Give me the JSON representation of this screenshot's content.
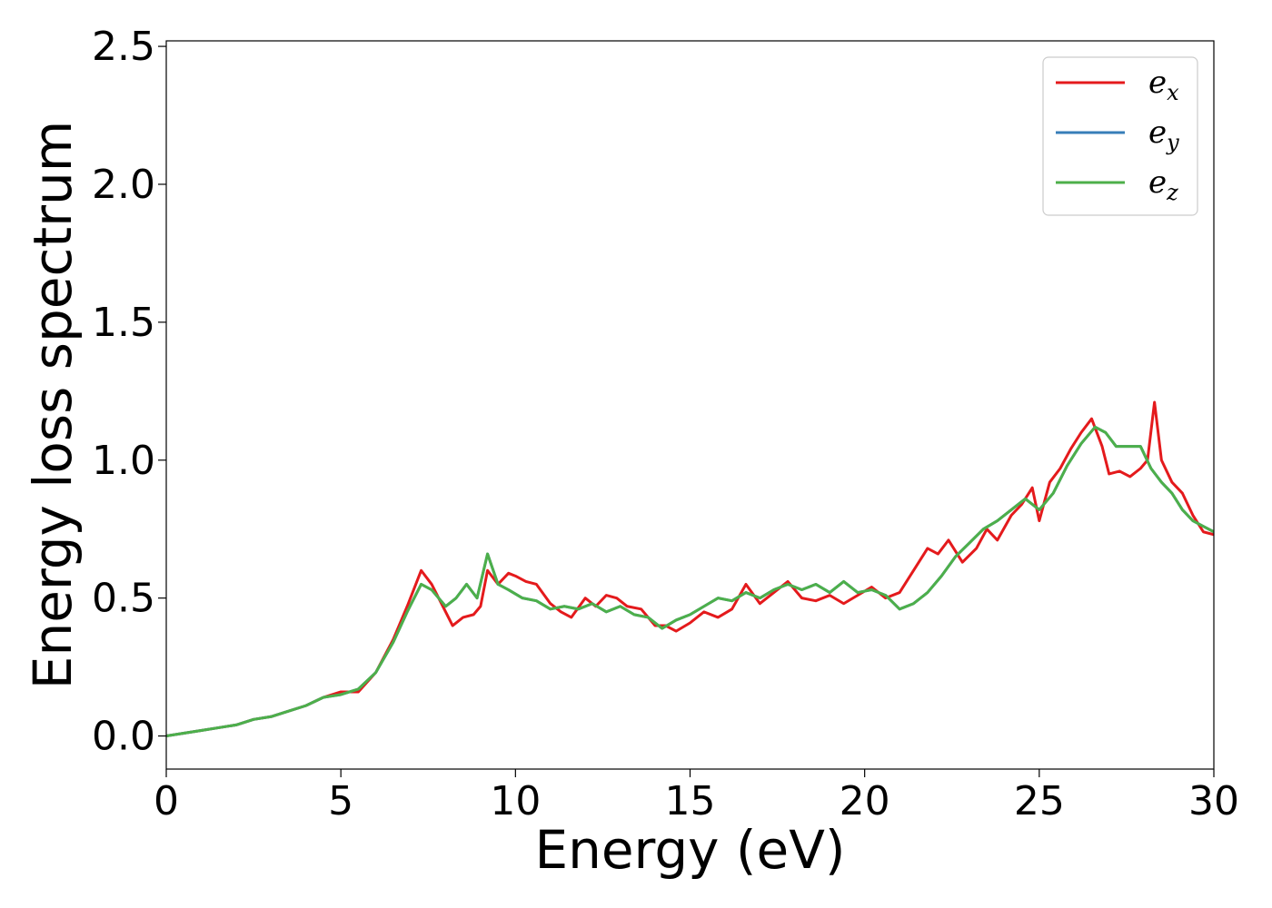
{
  "chart_data": {
    "type": "line",
    "xlabel": "Energy (eV)",
    "ylabel": "Energy loss spectrum",
    "xlim": [
      0,
      30
    ],
    "ylim": [
      -0.12,
      2.52
    ],
    "xticks": [
      0,
      5,
      10,
      15,
      20,
      25,
      30
    ],
    "xtick_labels": [
      "0",
      "5",
      "10",
      "15",
      "20",
      "25",
      "30"
    ],
    "yticks": [
      0.0,
      0.5,
      1.0,
      1.5,
      2.0,
      2.5
    ],
    "ytick_labels": [
      "0.0",
      "0.5",
      "1.0",
      "1.5",
      "2.0",
      "2.5"
    ],
    "grid": false,
    "legend_position": "top-right",
    "series": [
      {
        "name": "e_x",
        "label_base": "e",
        "label_sub": "x",
        "color": "#e41a1c",
        "x": [
          0,
          0.5,
          1,
          1.5,
          2,
          2.5,
          3,
          3.5,
          4,
          4.5,
          5,
          5.5,
          6,
          6.5,
          6.9,
          7.3,
          7.6,
          8,
          8.2,
          8.5,
          8.8,
          9,
          9.2,
          9.5,
          9.8,
          10,
          10.3,
          10.6,
          11,
          11.3,
          11.6,
          12,
          12.3,
          12.6,
          12.9,
          13.2,
          13.6,
          14,
          14.3,
          14.6,
          15,
          15.4,
          15.8,
          16.2,
          16.6,
          17,
          17.4,
          17.8,
          18.2,
          18.6,
          19,
          19.4,
          19.8,
          20.2,
          20.6,
          21,
          21.4,
          21.8,
          22.1,
          22.4,
          22.8,
          23.2,
          23.5,
          23.8,
          24.2,
          24.5,
          24.8,
          25,
          25.3,
          25.6,
          25.9,
          26.2,
          26.5,
          26.8,
          27,
          27.3,
          27.6,
          27.9,
          28.1,
          28.3,
          28.5,
          28.8,
          29.1,
          29.4,
          29.7,
          30
        ],
        "y": [
          0,
          0.01,
          0.02,
          0.03,
          0.04,
          0.06,
          0.07,
          0.09,
          0.11,
          0.14,
          0.16,
          0.16,
          0.23,
          0.35,
          0.47,
          0.6,
          0.55,
          0.45,
          0.4,
          0.43,
          0.44,
          0.47,
          0.6,
          0.55,
          0.59,
          0.58,
          0.56,
          0.55,
          0.48,
          0.45,
          0.43,
          0.5,
          0.47,
          0.51,
          0.5,
          0.47,
          0.46,
          0.4,
          0.4,
          0.38,
          0.41,
          0.45,
          0.43,
          0.46,
          0.55,
          0.48,
          0.52,
          0.56,
          0.5,
          0.49,
          0.51,
          0.48,
          0.51,
          0.54,
          0.5,
          0.52,
          0.6,
          0.68,
          0.66,
          0.71,
          0.63,
          0.68,
          0.75,
          0.71,
          0.8,
          0.84,
          0.9,
          0.78,
          0.92,
          0.97,
          1.04,
          1.1,
          1.15,
          1.05,
          0.95,
          0.96,
          0.94,
          0.97,
          1.0,
          1.21,
          1.0,
          0.92,
          0.88,
          0.8,
          0.74,
          0.73
        ]
      },
      {
        "name": "e_y",
        "label_base": "e",
        "label_sub": "y",
        "color": "#377eb8",
        "x": [
          0,
          0.5,
          1,
          1.5,
          2,
          2.5,
          3,
          3.5,
          4,
          4.5,
          5,
          5.5,
          6,
          6.5,
          6.9,
          7.3,
          7.6,
          8,
          8.3,
          8.6,
          8.9,
          9.2,
          9.5,
          9.8,
          10.2,
          10.6,
          11,
          11.4,
          11.8,
          12.2,
          12.6,
          13,
          13.4,
          13.8,
          14.2,
          14.6,
          15,
          15.4,
          15.8,
          16.2,
          16.6,
          17,
          17.4,
          17.8,
          18.2,
          18.6,
          19,
          19.4,
          19.8,
          20.2,
          20.6,
          21,
          21.4,
          21.8,
          22.2,
          22.6,
          23,
          23.4,
          23.8,
          24.2,
          24.6,
          25,
          25.4,
          25.8,
          26.2,
          26.6,
          26.9,
          27.2,
          27.5,
          27.9,
          28.2,
          28.5,
          28.8,
          29.1,
          29.4,
          29.7,
          30
        ],
        "y": [
          0,
          0.01,
          0.02,
          0.03,
          0.04,
          0.06,
          0.07,
          0.09,
          0.11,
          0.14,
          0.15,
          0.17,
          0.23,
          0.34,
          0.45,
          0.55,
          0.53,
          0.47,
          0.5,
          0.55,
          0.5,
          0.66,
          0.55,
          0.53,
          0.5,
          0.49,
          0.46,
          0.47,
          0.46,
          0.48,
          0.45,
          0.47,
          0.44,
          0.43,
          0.39,
          0.42,
          0.44,
          0.47,
          0.5,
          0.49,
          0.52,
          0.5,
          0.53,
          0.55,
          0.53,
          0.55,
          0.52,
          0.56,
          0.52,
          0.53,
          0.51,
          0.46,
          0.48,
          0.52,
          0.58,
          0.65,
          0.7,
          0.75,
          0.78,
          0.82,
          0.86,
          0.82,
          0.88,
          0.98,
          1.06,
          1.12,
          1.1,
          1.05,
          1.05,
          1.05,
          0.97,
          0.92,
          0.88,
          0.82,
          0.78,
          0.76,
          0.74
        ]
      },
      {
        "name": "e_z",
        "label_base": "e",
        "label_sub": "z",
        "color": "#4daf4a",
        "x": [
          0,
          0.5,
          1,
          1.5,
          2,
          2.5,
          3,
          3.5,
          4,
          4.5,
          5,
          5.5,
          6,
          6.5,
          6.9,
          7.3,
          7.6,
          8,
          8.3,
          8.6,
          8.9,
          9.2,
          9.5,
          9.8,
          10.2,
          10.6,
          11,
          11.4,
          11.8,
          12.2,
          12.6,
          13,
          13.4,
          13.8,
          14.2,
          14.6,
          15,
          15.4,
          15.8,
          16.2,
          16.6,
          17,
          17.4,
          17.8,
          18.2,
          18.6,
          19,
          19.4,
          19.8,
          20.2,
          20.6,
          21,
          21.4,
          21.8,
          22.2,
          22.6,
          23,
          23.4,
          23.8,
          24.2,
          24.6,
          25,
          25.4,
          25.8,
          26.2,
          26.6,
          26.9,
          27.2,
          27.5,
          27.9,
          28.2,
          28.5,
          28.8,
          29.1,
          29.4,
          29.7,
          30
        ],
        "y": [
          0,
          0.01,
          0.02,
          0.03,
          0.04,
          0.06,
          0.07,
          0.09,
          0.11,
          0.14,
          0.15,
          0.17,
          0.23,
          0.34,
          0.45,
          0.55,
          0.53,
          0.47,
          0.5,
          0.55,
          0.5,
          0.66,
          0.55,
          0.53,
          0.5,
          0.49,
          0.46,
          0.47,
          0.46,
          0.48,
          0.45,
          0.47,
          0.44,
          0.43,
          0.39,
          0.42,
          0.44,
          0.47,
          0.5,
          0.49,
          0.52,
          0.5,
          0.53,
          0.55,
          0.53,
          0.55,
          0.52,
          0.56,
          0.52,
          0.53,
          0.51,
          0.46,
          0.48,
          0.52,
          0.58,
          0.65,
          0.7,
          0.75,
          0.78,
          0.82,
          0.86,
          0.82,
          0.88,
          0.98,
          1.06,
          1.12,
          1.1,
          1.05,
          1.05,
          1.05,
          0.97,
          0.92,
          0.88,
          0.82,
          0.78,
          0.76,
          0.74
        ]
      }
    ]
  }
}
